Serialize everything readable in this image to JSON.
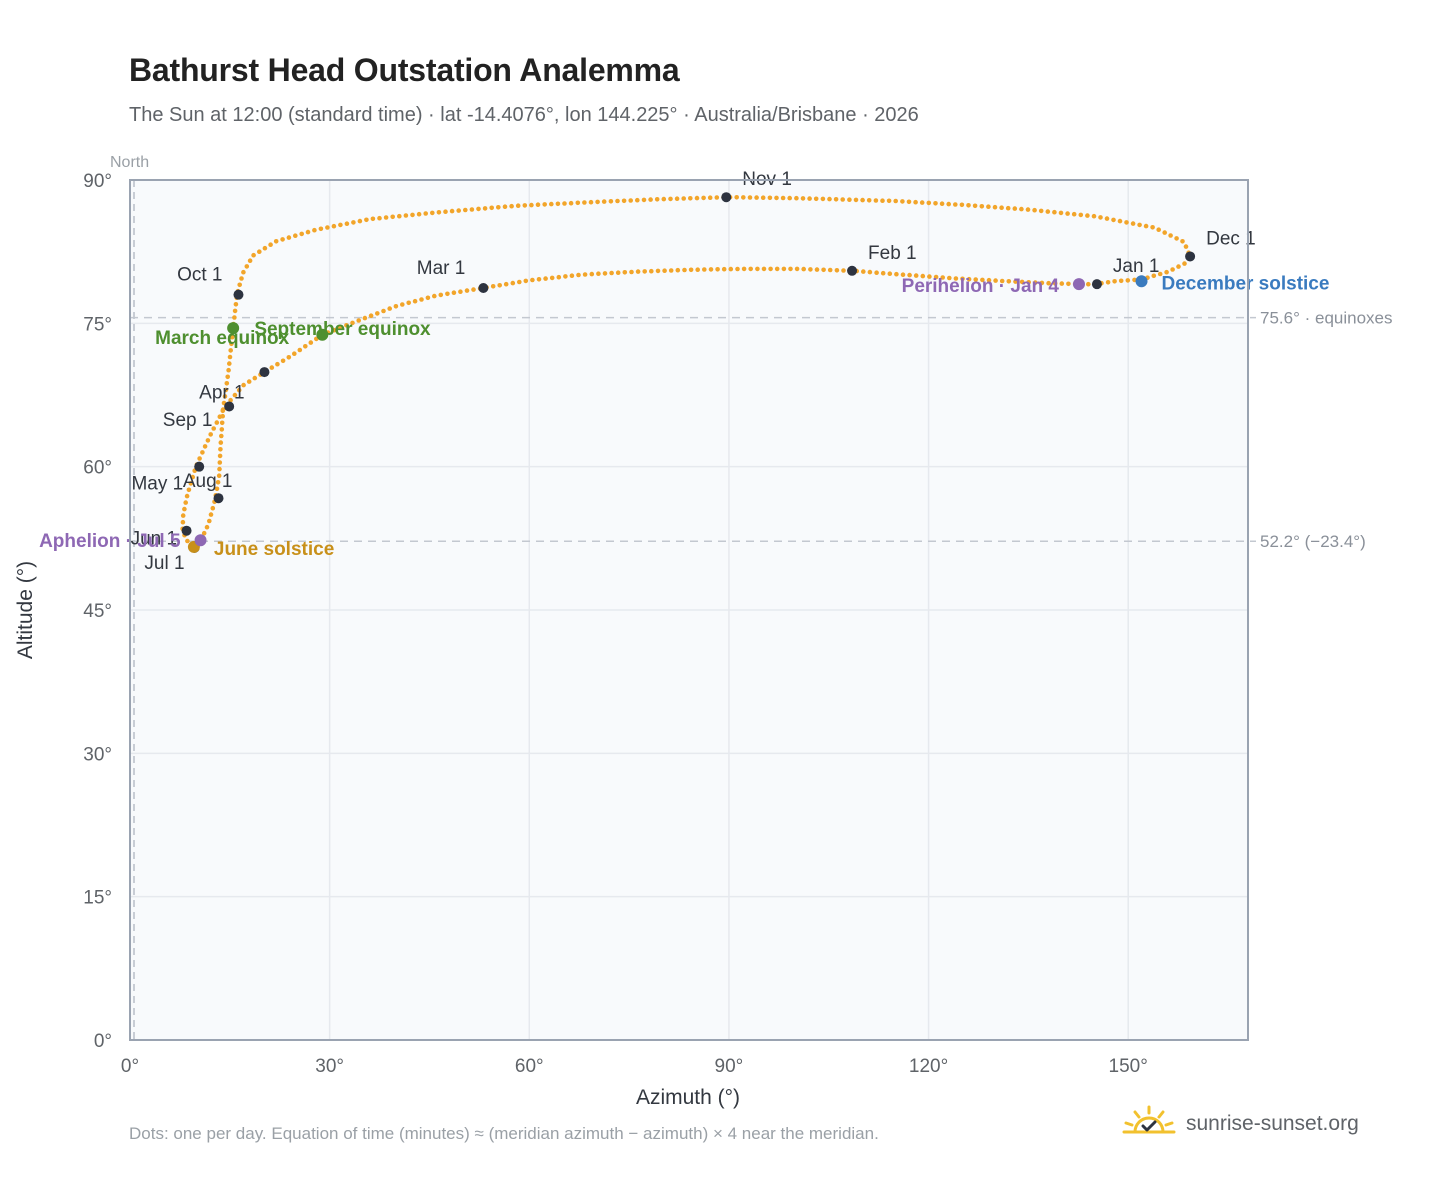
{
  "title": "Bathurst Head Outstation Analemma",
  "subtitle": "The Sun at 12:00 (standard time) · lat -14.4076°, lon 144.225° · Australia/Brisbane · 2026",
  "footnote": "Dots: one per day. Equation of time (minutes) ≈ (meridian azimuth − azimuth) × 4 near the meridian.",
  "brand": "sunrise-sunset.org",
  "chart_data": {
    "type": "scatter",
    "xlabel": "Azimuth (°)",
    "ylabel": "Altitude (°)",
    "xlim": [
      0,
      168
    ],
    "ylim": [
      0,
      90
    ],
    "xticks": [
      0,
      30,
      60,
      90,
      120,
      150
    ],
    "yticks": [
      0,
      15,
      30,
      45,
      60,
      75,
      90
    ],
    "xtick_labels": [
      "0°",
      "30°",
      "60°",
      "90°",
      "120°",
      "150°"
    ],
    "ytick_labels": [
      "0°",
      "15°",
      "30°",
      "45°",
      "60°",
      "75°",
      "90°"
    ],
    "grid": true,
    "north_label": "North",
    "north_azimuth": 0,
    "reference_lines": [
      {
        "altitude": 75.6,
        "label": "75.6° · equinoxes"
      },
      {
        "altitude": 52.2,
        "label": "52.2° (−23.4°)"
      }
    ],
    "path_points": [
      [
        145.0,
        79.1
      ],
      [
        148.0,
        79.4
      ],
      [
        152.0,
        79.6
      ],
      [
        156.0,
        80.4
      ],
      [
        158.6,
        81.3
      ],
      [
        159.3,
        82.0
      ],
      [
        158.4,
        83.5
      ],
      [
        154.0,
        85.0
      ],
      [
        145.0,
        86.2
      ],
      [
        135.0,
        86.9
      ],
      [
        125.0,
        87.4
      ],
      [
        115.0,
        87.8
      ],
      [
        100.0,
        88.1
      ],
      [
        89.6,
        88.2
      ],
      [
        80.0,
        88.0
      ],
      [
        70.0,
        87.7
      ],
      [
        58.0,
        87.3
      ],
      [
        46.0,
        86.6
      ],
      [
        36.0,
        85.9
      ],
      [
        28.0,
        84.8
      ],
      [
        22.0,
        83.6
      ],
      [
        18.5,
        82.1
      ],
      [
        17.0,
        80.3
      ],
      [
        16.1,
        78.1
      ],
      [
        15.5,
        74.5
      ],
      [
        14.8,
        70.0
      ],
      [
        14.0,
        66.0
      ],
      [
        13.6,
        62.0
      ],
      [
        13.4,
        59.0
      ],
      [
        12.8,
        56.6
      ],
      [
        11.8,
        54.0
      ],
      [
        10.6,
        52.2
      ],
      [
        9.4,
        51.6
      ],
      [
        8.4,
        52.4
      ],
      [
        7.9,
        53.4
      ],
      [
        8.0,
        55.0
      ],
      [
        8.6,
        57.0
      ],
      [
        9.9,
        60.0
      ],
      [
        12.0,
        63.2
      ],
      [
        14.2,
        66.2
      ],
      [
        17.0,
        68.5
      ],
      [
        20.2,
        69.9
      ],
      [
        24.0,
        71.5
      ],
      [
        28.9,
        73.8
      ],
      [
        34.0,
        75.2
      ],
      [
        40.0,
        76.8
      ],
      [
        46.0,
        77.9
      ],
      [
        53.1,
        78.7
      ],
      [
        60.0,
        79.5
      ],
      [
        68.0,
        80.1
      ],
      [
        76.0,
        80.4
      ],
      [
        84.0,
        80.6
      ],
      [
        92.0,
        80.7
      ],
      [
        100.0,
        80.7
      ],
      [
        108.5,
        80.5
      ],
      [
        116.0,
        80.1
      ],
      [
        124.0,
        79.7
      ],
      [
        132.0,
        79.4
      ],
      [
        138.0,
        79.2
      ],
      [
        142.6,
        79.1
      ],
      [
        145.0,
        79.1
      ]
    ],
    "month_markers": [
      {
        "label": "Jan 1",
        "az": 145.3,
        "alt": 79.1
      },
      {
        "label": "Feb 1",
        "az": 108.5,
        "alt": 80.5
      },
      {
        "label": "Mar 1",
        "az": 53.1,
        "alt": 78.7
      },
      {
        "label": "Apr 1",
        "az": 14.9,
        "alt": 66.3
      },
      {
        "label": "May 1",
        "az": 10.4,
        "alt": 60.0
      },
      {
        "label": "Jun 1",
        "az": 8.5,
        "alt": 53.3
      },
      {
        "label": "Jul 1",
        "az": 9.7,
        "alt": 51.5
      },
      {
        "label": "Aug 1",
        "az": 13.3,
        "alt": 56.7
      },
      {
        "label": "Sep 1",
        "az": 20.2,
        "alt": 69.9
      },
      {
        "label": "Oct 1",
        "az": 16.3,
        "alt": 78.0
      },
      {
        "label": "Nov 1",
        "az": 89.6,
        "alt": 88.2
      },
      {
        "label": "Dec 1",
        "az": 159.3,
        "alt": 82.0
      }
    ],
    "events": [
      {
        "label": "December solstice",
        "az": 152.0,
        "alt": 79.4,
        "color": "#3a7bbf"
      },
      {
        "label": "Perihelion · Jan 4",
        "az": 142.6,
        "alt": 79.1,
        "color": "#8e68b4"
      },
      {
        "label": "March equinox",
        "az": 15.5,
        "alt": 74.5,
        "color": "#4e8f2f"
      },
      {
        "label": "September equinox",
        "az": 28.9,
        "alt": 73.8,
        "color": "#4e8f2f"
      },
      {
        "label": "June solstice",
        "az": 9.6,
        "alt": 51.6,
        "color": "#c8901a"
      },
      {
        "label": "Aphelion · Jul 5",
        "az": 10.6,
        "alt": 52.3,
        "color": "#8e68b4"
      }
    ],
    "colors": {
      "path": "#f2a52a",
      "marker": "#2d3340",
      "grid": "#e6e9ee",
      "plot_bg": "#f8fafc",
      "frame": "#9aa3b1"
    }
  }
}
